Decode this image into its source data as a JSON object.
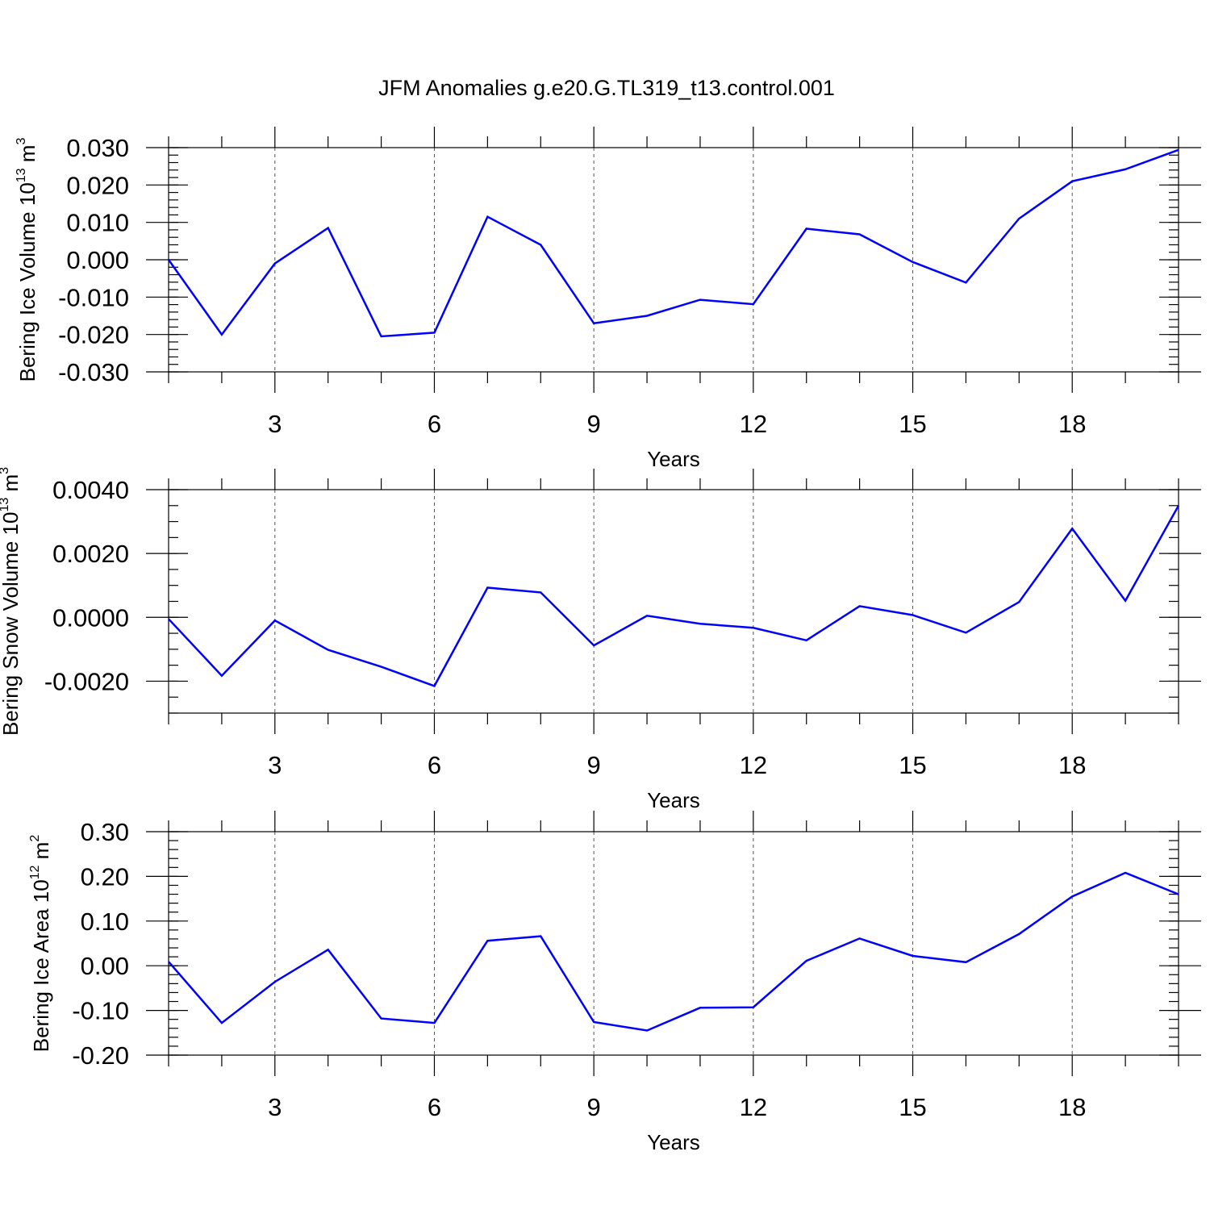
{
  "chart_data": {
    "title": "JFM Anomalies g.e20.G.TL319_t13.control.001",
    "type": "line",
    "panels": [
      {
        "type": "line",
        "ylabel": "Bering Ice Volume 10",
        "ylabel_exp": "13",
        "ylabel_unit": " m",
        "ylabel_unit_exp": "3",
        "xlabel": "Years",
        "xlim": [
          1,
          20
        ],
        "ylim": [
          -0.03,
          0.03
        ],
        "yticks": [
          -0.03,
          -0.02,
          -0.01,
          0.0,
          0.01,
          0.02,
          0.03
        ],
        "ytick_labels": [
          "-0.030",
          "-0.020",
          "-0.010",
          "0.000",
          "0.010",
          "0.020",
          "0.030"
        ],
        "yminor_step": 0.002,
        "xticks": [
          3,
          6,
          9,
          12,
          15,
          18
        ],
        "xtick_labels": [
          "3",
          "6",
          "9",
          "12",
          "15",
          "18"
        ],
        "grid_x": true,
        "series": [
          {
            "name": "Bering Ice Volume",
            "color": "#0000ff",
            "x": [
              1,
              2,
              3,
              4,
              5,
              6,
              7,
              8,
              9,
              10,
              11,
              12,
              13,
              14,
              15,
              16,
              17,
              18,
              19,
              20
            ],
            "values": [
              0.0,
              -0.02,
              -0.001,
              0.0085,
              -0.0205,
              -0.0195,
              0.0115,
              0.004,
              -0.017,
              -0.015,
              -0.0107,
              -0.0119,
              0.0083,
              0.0068,
              -0.0006,
              -0.0061,
              0.011,
              0.021,
              0.0242,
              0.0294
            ]
          }
        ]
      },
      {
        "type": "line",
        "ylabel": "Bering Snow Volume 10",
        "ylabel_exp": "13",
        "ylabel_unit": " m",
        "ylabel_unit_exp": "3",
        "xlabel": "Years",
        "xlim": [
          1,
          20
        ],
        "ylim": [
          -0.003,
          0.004
        ],
        "yticks": [
          -0.002,
          0.0,
          0.002,
          0.004
        ],
        "ytick_labels": [
          "-0.0020",
          "0.0000",
          "0.0020",
          "0.0040"
        ],
        "yminor_step": 0.0005,
        "xticks": [
          3,
          6,
          9,
          12,
          15,
          18
        ],
        "xtick_labels": [
          "3",
          "6",
          "9",
          "12",
          "15",
          "18"
        ],
        "grid_x": true,
        "series": [
          {
            "name": "Bering Snow Volume",
            "color": "#0000ff",
            "x": [
              1,
              2,
              3,
              4,
              5,
              6,
              7,
              8,
              9,
              10,
              11,
              12,
              13,
              14,
              15,
              16,
              17,
              18,
              19,
              20
            ],
            "values": [
              -5e-05,
              -0.00183,
              -0.0001,
              -0.00102,
              -0.00155,
              -0.00215,
              0.00093,
              0.00078,
              -0.00088,
              5e-05,
              -0.0002,
              -0.00033,
              -0.00072,
              0.00035,
              7e-05,
              -0.00048,
              0.00048,
              0.00278,
              0.00052,
              0.0035
            ]
          }
        ]
      },
      {
        "type": "line",
        "ylabel": "Bering Ice Area 10",
        "ylabel_exp": "12",
        "ylabel_unit": " m",
        "ylabel_unit_exp": "2",
        "xlabel": "Years",
        "xlim": [
          1,
          20
        ],
        "ylim": [
          -0.2,
          0.3
        ],
        "yticks": [
          -0.2,
          -0.1,
          0.0,
          0.1,
          0.2,
          0.3
        ],
        "ytick_labels": [
          "-0.20",
          "-0.10",
          "0.00",
          "0.10",
          "0.20",
          "0.30"
        ],
        "yminor_step": 0.02,
        "xticks": [
          3,
          6,
          9,
          12,
          15,
          18
        ],
        "xtick_labels": [
          "3",
          "6",
          "9",
          "12",
          "15",
          "18"
        ],
        "grid_x": true,
        "series": [
          {
            "name": "Bering Ice Area",
            "color": "#0000ff",
            "x": [
              1,
              2,
              3,
              4,
              5,
              6,
              7,
              8,
              9,
              10,
              11,
              12,
              13,
              14,
              15,
              16,
              17,
              18,
              19,
              20
            ],
            "values": [
              0.009,
              -0.128,
              -0.036,
              0.036,
              -0.118,
              -0.128,
              0.056,
              0.066,
              -0.126,
              -0.145,
              -0.094,
              -0.093,
              0.011,
              0.061,
              0.022,
              0.008,
              0.071,
              0.155,
              0.208,
              0.16
            ]
          }
        ]
      }
    ]
  }
}
